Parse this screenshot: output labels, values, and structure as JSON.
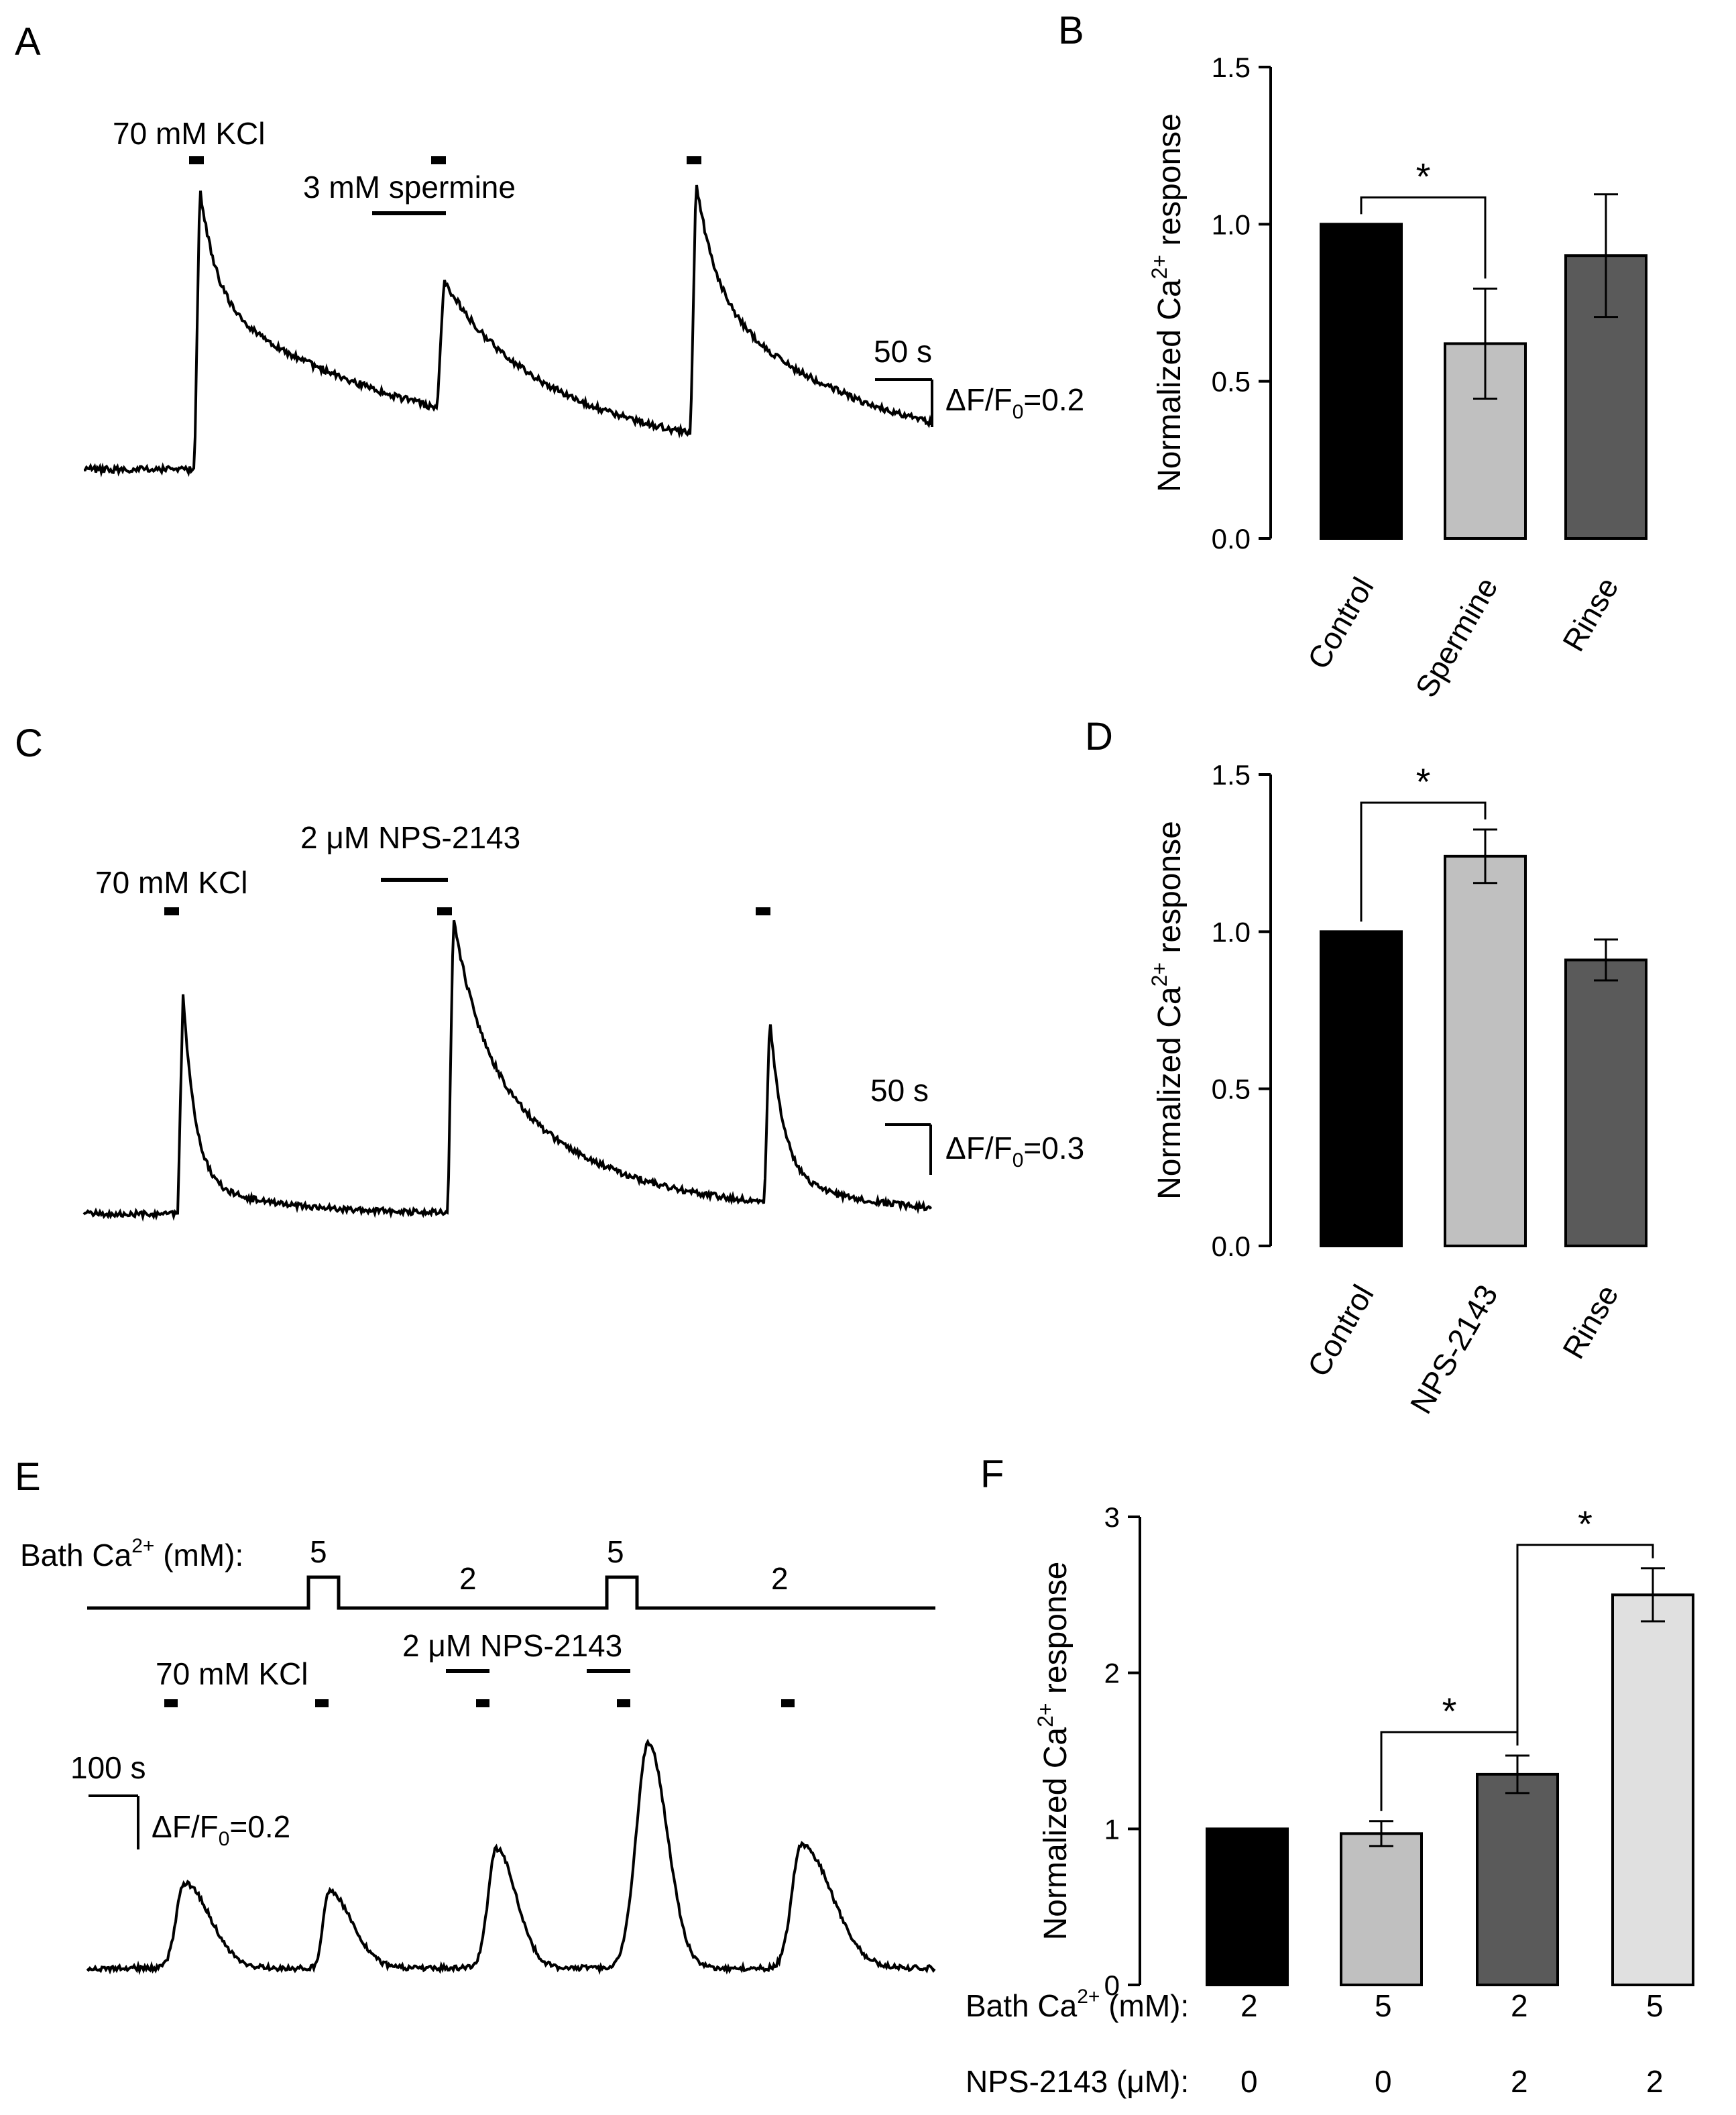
{
  "chart_data": [
    {
      "panel": "A",
      "type": "line",
      "annotations": {
        "kcl": "70 mM KCl",
        "drug": "3 mM spermine",
        "time_scale": "50 s",
        "amp_scale_prefix": "ΔF/F",
        "amp_scale_sub": "0",
        "amp_scale_value": "=0.2"
      },
      "trace_description": "Calcium trace with three KCl-evoked peaks; middle peak (during spermine) reduced",
      "peaks_relative": [
        1.0,
        0.46,
        0.9
      ]
    },
    {
      "panel": "B",
      "type": "bar",
      "categories": [
        "Control",
        "Spermine",
        "Rinse"
      ],
      "values": [
        1.0,
        0.62,
        0.9
      ],
      "errors": [
        0,
        0.175,
        0.195
      ],
      "colors": [
        "#000000",
        "#c0c0c0",
        "#5a5a5a"
      ],
      "ylabel_main": "Normalized Ca",
      "ylabel_sup": "2+",
      "ylabel_tail": " response",
      "ylim": [
        0,
        1.5
      ],
      "yticks": [
        "0.0",
        "0.5",
        "1.0",
        "1.5"
      ],
      "yticks_values": [
        0,
        0.5,
        1.0,
        1.5
      ],
      "significance": [
        {
          "from": 0,
          "to": 1,
          "label": "*"
        }
      ]
    },
    {
      "panel": "C",
      "type": "line",
      "annotations": {
        "kcl": "70 mM KCl",
        "drug": "2 μM NPS-2143",
        "time_scale": "50 s",
        "amp_scale_prefix": "ΔF/F",
        "amp_scale_sub": "0",
        "amp_scale_value": "=0.3"
      },
      "trace_description": "Calcium trace; middle peak (during NPS-2143) enhanced",
      "peaks_relative": [
        0.75,
        1.0,
        0.63
      ]
    },
    {
      "panel": "D",
      "type": "bar",
      "categories": [
        "Control",
        "NPS-2143",
        "Rinse"
      ],
      "values": [
        1.0,
        1.24,
        0.91
      ],
      "errors": [
        0,
        0.085,
        0.065
      ],
      "colors": [
        "#000000",
        "#c0c0c0",
        "#5a5a5a"
      ],
      "ylabel_main": "Normalized Ca",
      "ylabel_sup": "2+",
      "ylabel_tail": " response",
      "ylim": [
        0,
        1.5
      ],
      "yticks": [
        "0.0",
        "0.5",
        "1.0",
        "1.5"
      ],
      "yticks_values": [
        0,
        0.5,
        1.0,
        1.5
      ],
      "significance": [
        {
          "from": 0,
          "to": 1,
          "label": "*"
        }
      ]
    },
    {
      "panel": "E",
      "type": "line",
      "annotations": {
        "bath_label_main": "Bath Ca",
        "bath_label_sup": "2+",
        "bath_label_tail": " (mM):",
        "bath_steps": [
          "5",
          "2",
          "5",
          "2"
        ],
        "kcl": "70 mM KCl",
        "drug": "2 μM NPS-2143",
        "time_scale": "100 s",
        "amp_scale_prefix": "ΔF/F",
        "amp_scale_sub": "0",
        "amp_scale_value": "=0.2"
      },
      "trace_description": "Five KCl-evoked peaks; largest during 5 mM Ca plus NPS-2143",
      "peaks_relative": [
        0.38,
        0.34,
        0.53,
        1.0,
        0.55
      ]
    },
    {
      "panel": "F",
      "type": "bar",
      "categories": [
        "",
        "",
        "",
        ""
      ],
      "values": [
        1.0,
        0.97,
        1.35,
        2.5
      ],
      "errors": [
        0,
        0.08,
        0.12,
        0.17
      ],
      "colors": [
        "#000000",
        "#c0c0c0",
        "#5a5a5a",
        "#e0e0e0"
      ],
      "ylabel_main": "Normalized Ca",
      "ylabel_sup": "2+",
      "ylabel_tail": " response",
      "ylim": [
        0,
        3
      ],
      "yticks": [
        "0",
        "1",
        "2",
        "3"
      ],
      "yticks_values": [
        0,
        1,
        2,
        3
      ],
      "significance": [
        {
          "from": 1,
          "to": 2,
          "label": "*"
        },
        {
          "from": 2,
          "to": 3,
          "label": "*"
        }
      ],
      "condition_table": {
        "row1_label_main": "Bath Ca",
        "row1_label_sup": "2+",
        "row1_label_tail": " (mM):",
        "row1_values": [
          "2",
          "5",
          "2",
          "5"
        ],
        "row2_label": "NPS-2143 (μM):",
        "row2_values": [
          "0",
          "0",
          "2",
          "2"
        ]
      }
    }
  ],
  "panel_labels": [
    "A",
    "B",
    "C",
    "D",
    "E",
    "F"
  ]
}
